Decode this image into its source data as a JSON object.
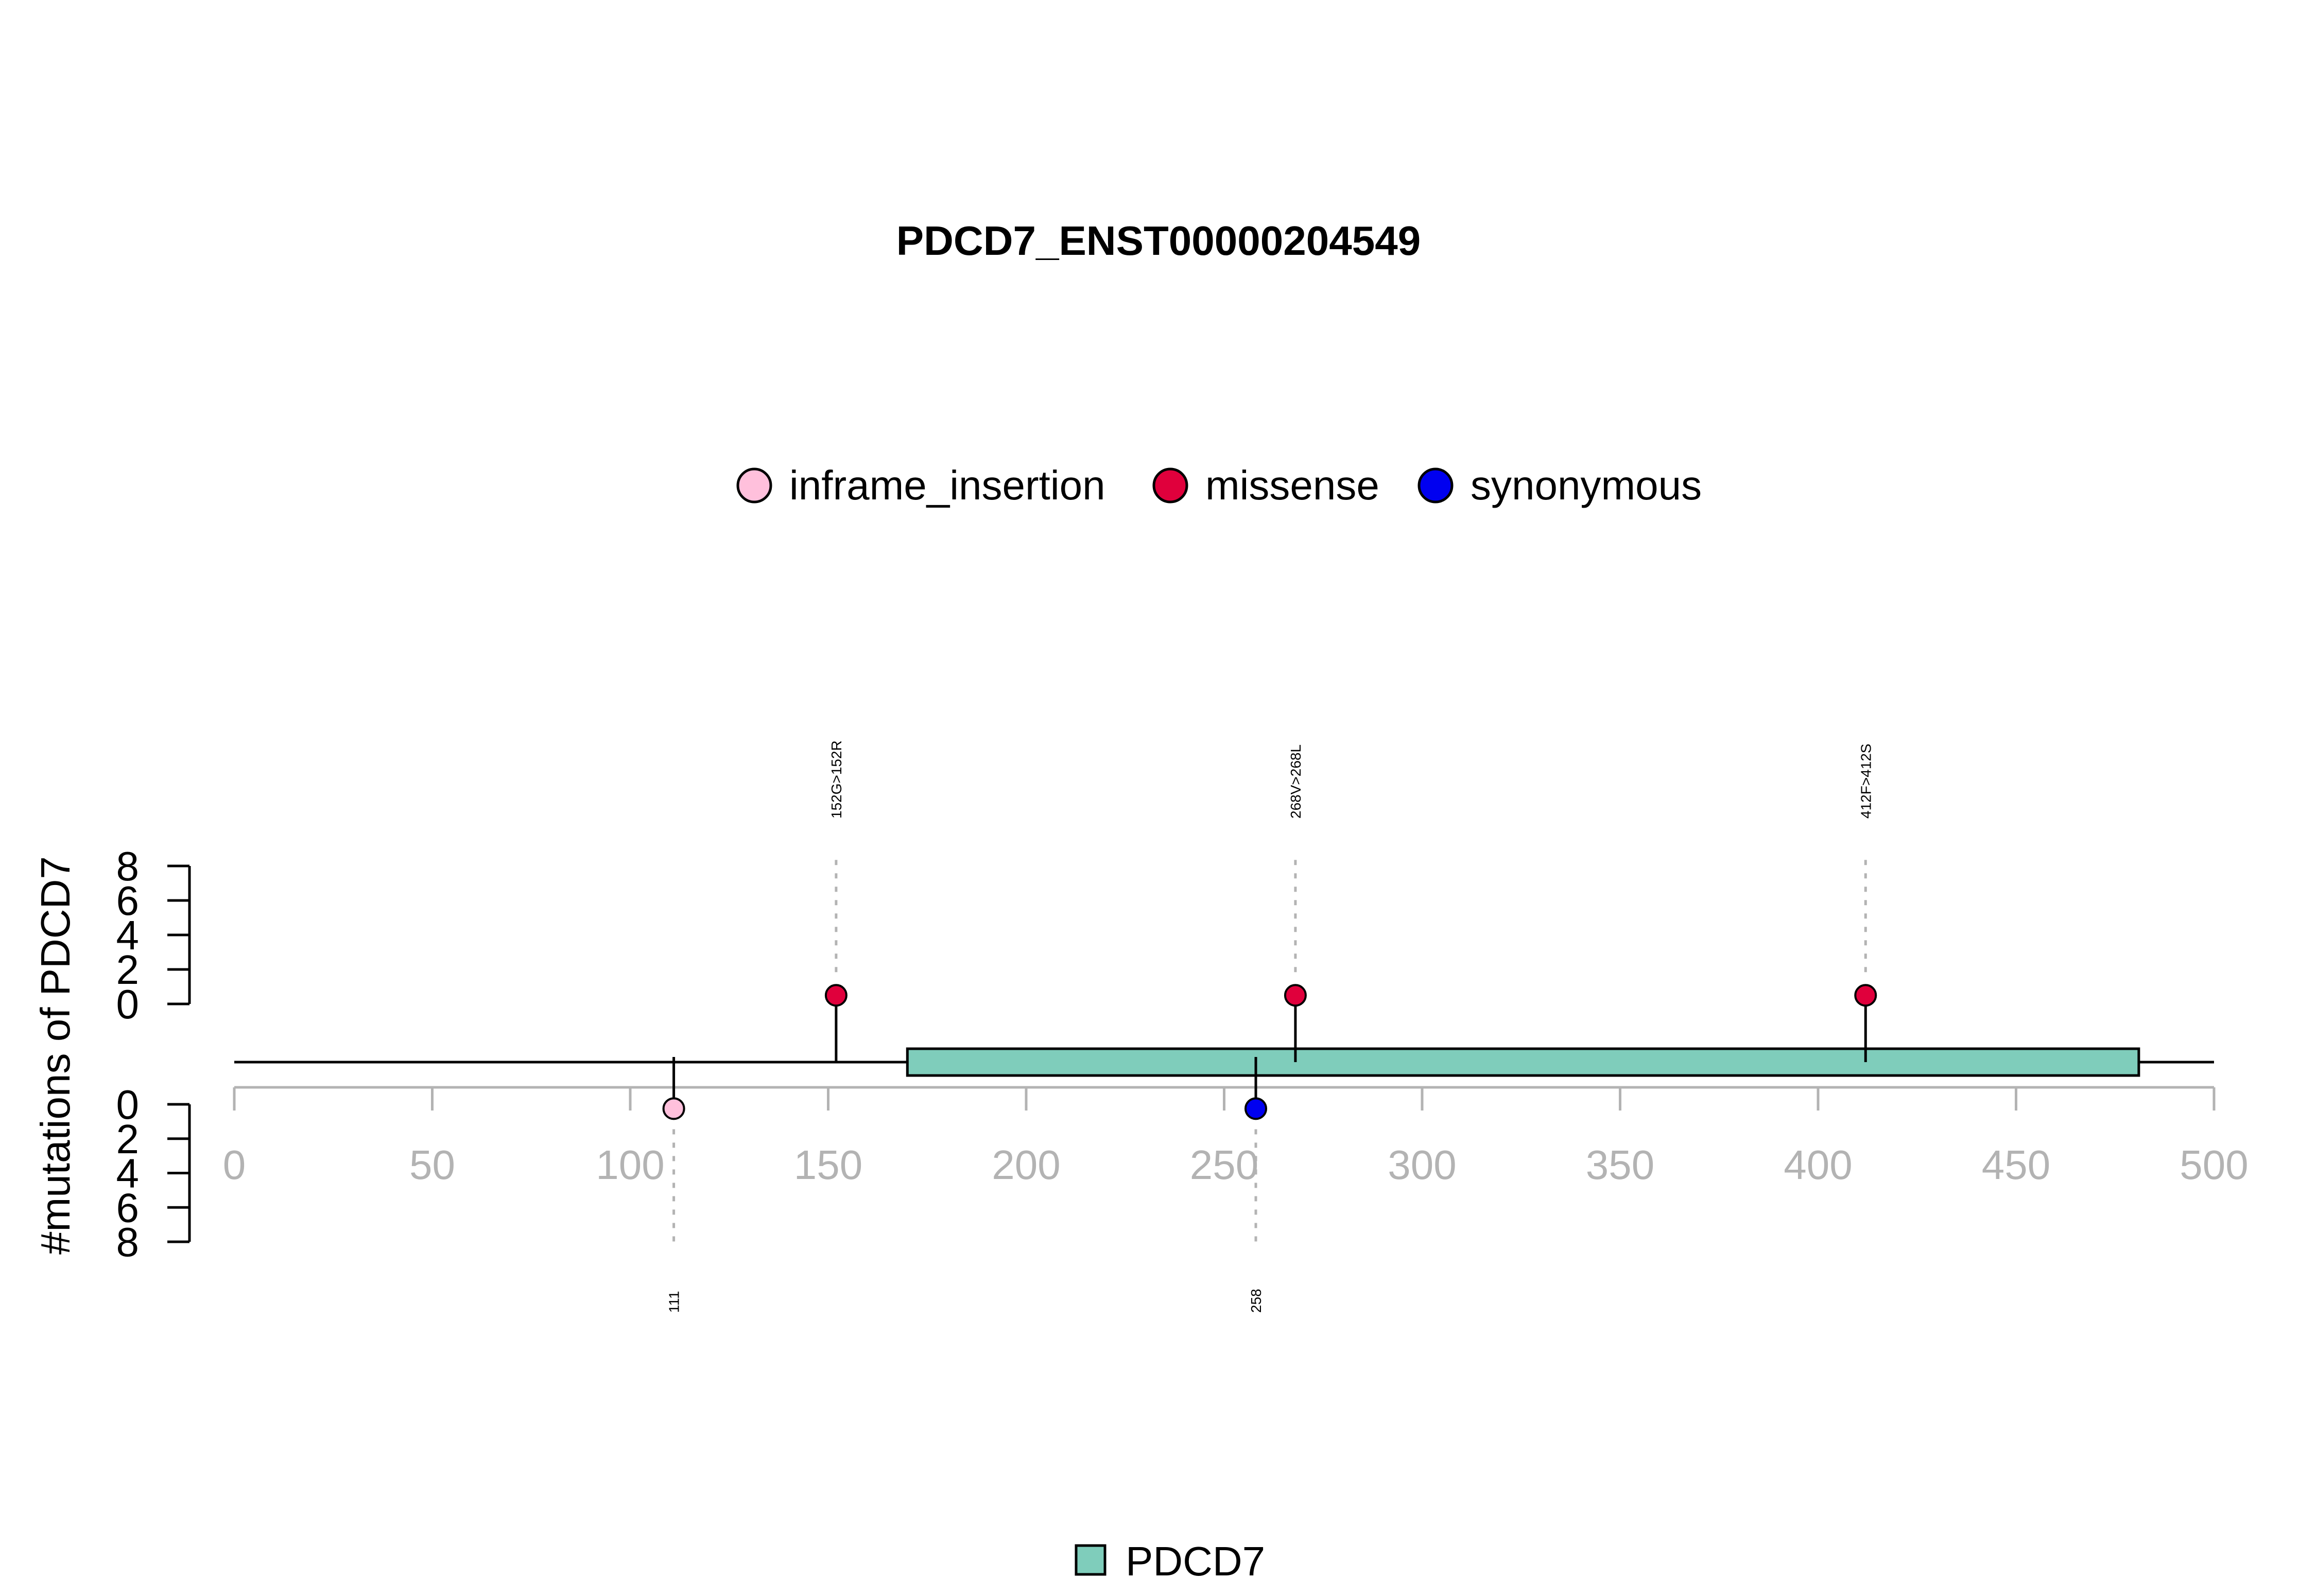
{
  "chart_data": {
    "type": "lollipop",
    "title": "PDCD7_ENST00000204549",
    "ylabel": "#mutations of PDCD7",
    "xlim": [
      0,
      500
    ],
    "x_ticks": [
      "0",
      "50",
      "100",
      "150",
      "200",
      "250",
      "300",
      "350",
      "400",
      "450",
      "500"
    ],
    "y_ticks": [
      "0",
      "2",
      "4",
      "6",
      "8"
    ],
    "ylim": [
      0,
      8
    ],
    "protein_length": 500,
    "legend": [
      {
        "name": "inframe_insertion",
        "color": "#FFC0DC"
      },
      {
        "name": "missense",
        "color": "#E0003C"
      },
      {
        "name": "synonymous",
        "color": "#0000F0"
      }
    ],
    "domains": [
      {
        "name": "PDCD7",
        "start": 170,
        "end": 481,
        "color": "#7FCDBB"
      }
    ],
    "domain_legend": [
      {
        "name": "PDCD7",
        "color": "#7FCDBB"
      }
    ],
    "mutations": [
      {
        "position": 152,
        "label": "152G>152R",
        "type": "missense",
        "count": 1,
        "side": "top"
      },
      {
        "position": 268,
        "label": "268V>268L",
        "type": "missense",
        "count": 1,
        "side": "top"
      },
      {
        "position": 412,
        "label": "412F>412S",
        "type": "missense",
        "count": 1,
        "side": "top"
      },
      {
        "position": 111,
        "label": "111",
        "type": "inframe_insertion",
        "count": 1,
        "side": "bottom"
      },
      {
        "position": 258,
        "label": "258",
        "type": "synonymous",
        "count": 1,
        "side": "bottom"
      }
    ]
  }
}
